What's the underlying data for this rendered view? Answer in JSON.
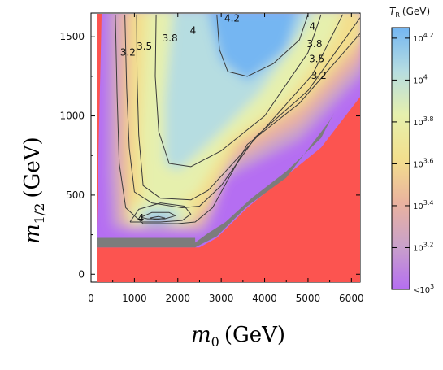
{
  "chart_data": {
    "type": "heatmap",
    "xlabel_main": "m",
    "xlabel_sub": "0",
    "xlabel_unit": "(GeV)",
    "ylabel_main": "m",
    "ylabel_sub": "1/2",
    "ylabel_unit": "(GeV)",
    "xlim": [
      0,
      6200
    ],
    "ylim": [
      -50,
      1650
    ],
    "x_ticks": [
      0,
      1000,
      2000,
      3000,
      4000,
      5000,
      6000
    ],
    "x_tick_labels": [
      "0",
      "1000",
      "2000",
      "3000",
      "4000",
      "5000",
      "6000"
    ],
    "y_ticks": [
      0,
      500,
      1000,
      1500
    ],
    "y_tick_labels": [
      "0",
      "500",
      "1000",
      "1500"
    ],
    "colorbar": {
      "title_main": "T",
      "title_sub": "R",
      "title_unit": "(GeV)",
      "range_log10": [
        3.0,
        4.25
      ],
      "ticks": [
        {
          "value": 3.0,
          "base": "<10",
          "exp": "3"
        },
        {
          "value": 3.2,
          "base": "10",
          "exp": "3.2"
        },
        {
          "value": 3.4,
          "base": "10",
          "exp": "3.4"
        },
        {
          "value": 3.6,
          "base": "10",
          "exp": "3.6"
        },
        {
          "value": 3.8,
          "base": "10",
          "exp": "3.8"
        },
        {
          "value": 4.0,
          "base": "10",
          "exp": "4"
        },
        {
          "value": 4.2,
          "base": "10",
          "exp": "4.2"
        }
      ],
      "colors": [
        "#b56ef2",
        "#c9a1c9",
        "#eab39e",
        "#f3df8d",
        "#e6f0ad",
        "#b6dde1",
        "#74b6f2"
      ]
    },
    "contour_labels": [
      {
        "text": "3.2",
        "x": 850,
        "y": 1380
      },
      {
        "text": "3.5",
        "x": 1230,
        "y": 1420
      },
      {
        "text": "3.8",
        "x": 1820,
        "y": 1470
      },
      {
        "text": "4",
        "x": 2350,
        "y": 1520
      },
      {
        "text": "4.2",
        "x": 3250,
        "y": 1595
      },
      {
        "text": "4",
        "x": 5100,
        "y": 1545
      },
      {
        "text": "3.8",
        "x": 5150,
        "y": 1435
      },
      {
        "text": "3.5",
        "x": 5200,
        "y": 1340
      },
      {
        "text": "3.2",
        "x": 5250,
        "y": 1235
      },
      {
        "text": "4",
        "x": 1150,
        "y": 335
      }
    ],
    "region_colors": {
      "excluded": "#fc5450",
      "boundary": "#7c7c7c",
      "lowest": "#b56ef2"
    }
  }
}
